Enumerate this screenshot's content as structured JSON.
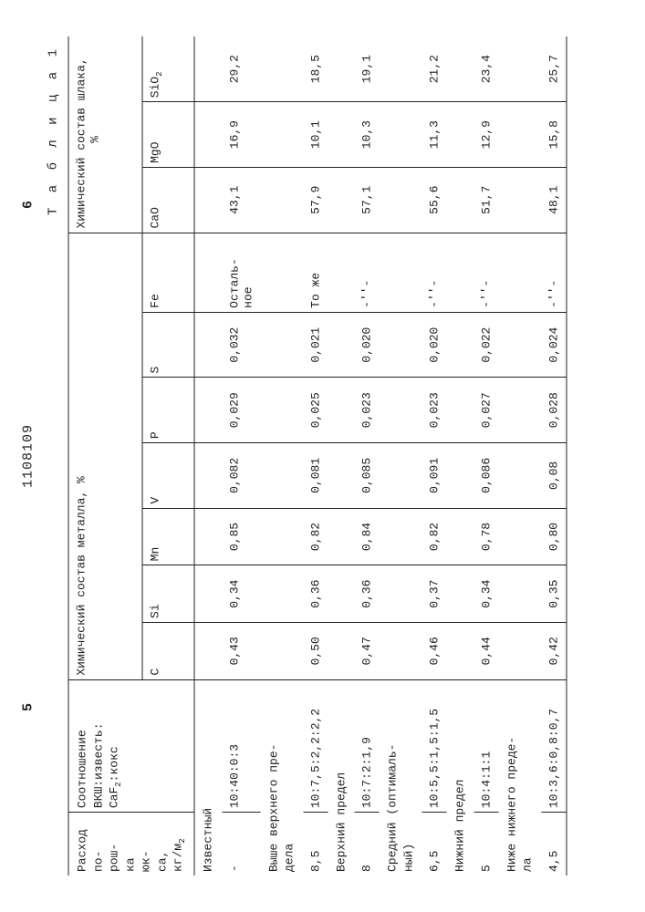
{
  "doc_number": "1108109",
  "page_left": "5",
  "page_right": "6",
  "caption": "Т а б л и ц а 1",
  "headers": {
    "col1": "Расход по- рош- ка юк- са, кг/м²",
    "col2": "Соотношение ВКШ:известь: CaF₂:кокс",
    "group_metal": "Химический состав металла, %",
    "group_slag": "Химический состав шлака, %",
    "C": "C",
    "Si": "Si",
    "Mn": "Mn",
    "V": "V",
    "P": "P",
    "S": "S",
    "Fe": "Fe",
    "CaO": "CaO",
    "MgO": "MgO",
    "SiO2": "SiO₂"
  },
  "rows": [
    {
      "label_line1": "Известный",
      "rashod": "-",
      "ratio": "10:40:0:3",
      "C": "0,43",
      "Si": "0,34",
      "Mn": "0,85",
      "V": "0,082",
      "P": "0,029",
      "S": "0,032",
      "Fe": "Осталь- ное",
      "CaO": "43,1",
      "MgO": "16,9",
      "SiO2": "29,2"
    },
    {
      "label_line1": "Выше верхнего пре- дела",
      "rashod": "8,5",
      "ratio": "10:7,5:2,2:2,2",
      "C": "0,50",
      "Si": "0,36",
      "Mn": "0,82",
      "V": "0,081",
      "P": "0,025",
      "S": "0,021",
      "Fe": "То же",
      "CaO": "57,9",
      "MgO": "10,1",
      "SiO2": "18,5"
    },
    {
      "label_line1": "Верхний предел",
      "rashod": "8",
      "ratio": "10:7:2:1,9",
      "C": "0,47",
      "Si": "0,36",
      "Mn": "0,84",
      "V": "0,085",
      "P": "0,023",
      "S": "0,020",
      "Fe": "-''-",
      "CaO": "57,1",
      "MgO": "10,3",
      "SiO2": "19,1"
    },
    {
      "label_line1": "Средний (оптималь- ный)",
      "rashod": "6,5",
      "ratio": "10:5,5:1,5:1,5",
      "C": "0,46",
      "Si": "0,37",
      "Mn": "0,82",
      "V": "0,091",
      "P": "0,023",
      "S": "0,020",
      "Fe": "-''-",
      "CaO": "55,6",
      "MgO": "11,3",
      "SiO2": "21,2"
    },
    {
      "label_line1": "Нижний предел",
      "rashod": "5",
      "ratio": "10:4:1:1",
      "C": "0,44",
      "Si": "0,34",
      "Mn": "0,78",
      "V": "0,086",
      "P": "0,027",
      "S": "0,022",
      "Fe": "-''-",
      "CaO": "51,7",
      "MgO": "12,9",
      "SiO2": "23,4"
    },
    {
      "label_line1": "Ниже нижнего преде- ла",
      "rashod": "4,5",
      "ratio": "10:3,6:0,8:0,7",
      "C": "0,42",
      "Si": "0,35",
      "Mn": "0,80",
      "V": "0,08",
      "P": "0,028",
      "S": "0,024",
      "Fe": "-''-",
      "CaO": "48,1",
      "MgO": "15,8",
      "SiO2": "25,7"
    }
  ]
}
